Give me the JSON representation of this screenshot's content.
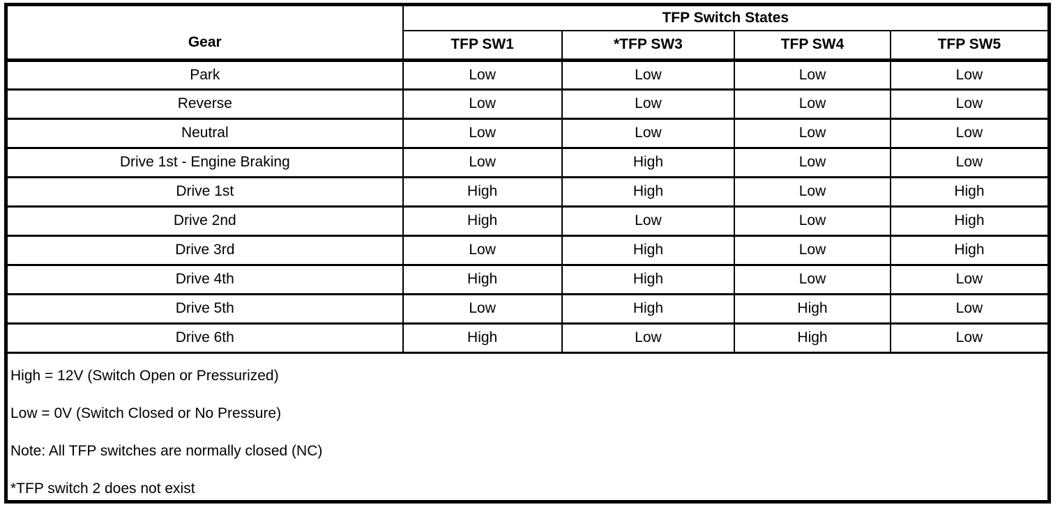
{
  "table": {
    "header_group": "TFP Switch States",
    "gear_header": "Gear",
    "switch_headers": [
      "TFP SW1",
      "*TFP SW3",
      "TFP SW4",
      "TFP SW5"
    ],
    "rows": [
      {
        "gear": "Park",
        "states": [
          "Low",
          "Low",
          "Low",
          "Low"
        ]
      },
      {
        "gear": "Reverse",
        "states": [
          "Low",
          "Low",
          "Low",
          "Low"
        ]
      },
      {
        "gear": "Neutral",
        "states": [
          "Low",
          "Low",
          "Low",
          "Low"
        ]
      },
      {
        "gear": "Drive 1st - Engine Braking",
        "states": [
          "Low",
          "High",
          "Low",
          "Low"
        ]
      },
      {
        "gear": "Drive 1st",
        "states": [
          "High",
          "High",
          "Low",
          "High"
        ]
      },
      {
        "gear": "Drive 2nd",
        "states": [
          "High",
          "Low",
          "Low",
          "High"
        ]
      },
      {
        "gear": "Drive 3rd",
        "states": [
          "Low",
          "High",
          "Low",
          "High"
        ]
      },
      {
        "gear": "Drive 4th",
        "states": [
          "High",
          "High",
          "Low",
          "Low"
        ]
      },
      {
        "gear": "Drive 5th",
        "states": [
          "Low",
          "High",
          "High",
          "Low"
        ]
      },
      {
        "gear": "Drive 6th",
        "states": [
          "High",
          "Low",
          "High",
          "Low"
        ]
      }
    ],
    "notes": [
      "High = 12V (Switch Open or Pressurized)",
      "Low = 0V (Switch Closed or No Pressure)",
      "Note: All TFP switches are normally closed (NC)",
      "*TFP switch 2 does not exist"
    ]
  },
  "colors": {
    "border": "#000000",
    "background": "#ffffff",
    "text": "#000000"
  }
}
